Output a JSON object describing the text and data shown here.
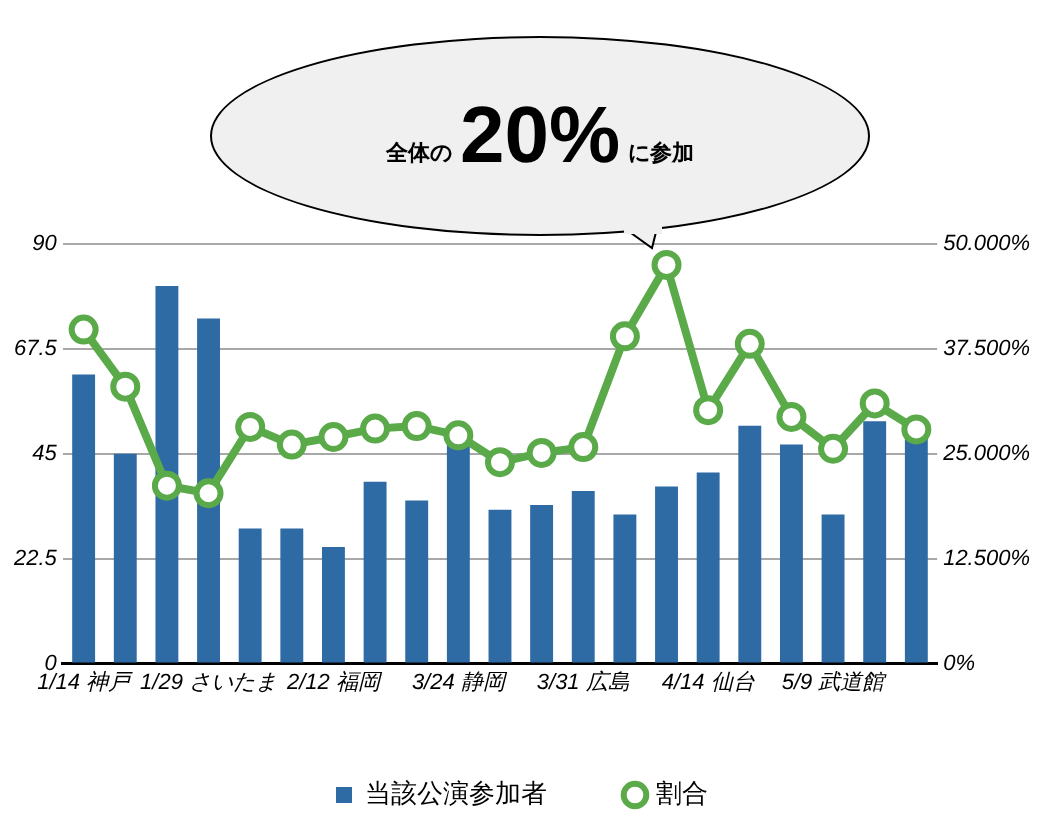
{
  "chart_data": {
    "type": "bar",
    "annotations": [
      "全体の",
      "20%",
      "に参加"
    ],
    "categories": [
      "1/14 神戸",
      null,
      null,
      "1/29 さいたま",
      null,
      null,
      "2/12 福岡",
      null,
      null,
      "3/24 静岡",
      null,
      null,
      "3/31 広島",
      null,
      null,
      "4/14 仙台",
      null,
      null,
      "5/9 武道館",
      null,
      null
    ],
    "series": [
      {
        "name": "当該公演参加者",
        "color": "#2e6aa3",
        "values": [
          62,
          45,
          81,
          74,
          29,
          29,
          25,
          39,
          35,
          47,
          33,
          34,
          37,
          32,
          38,
          41,
          51,
          47,
          32,
          52,
          49
        ]
      },
      {
        "name": "割合",
        "type": "line",
        "axis": "y2",
        "color": "#5aaa4a",
        "marker": "circle",
        "values": [
          39.8,
          33.0,
          21.2,
          20.3,
          28.2,
          26.1,
          27.0,
          28.0,
          28.3,
          27.2,
          24.0,
          25.1,
          25.8,
          39.0,
          47.5,
          30.2,
          38.1,
          29.4,
          25.6,
          31.0,
          27.9
        ]
      }
    ],
    "ylim": [
      0,
      90
    ],
    "yticks": [
      0,
      22.5,
      45,
      67.5,
      90
    ],
    "y2lim": [
      0,
      50
    ],
    "y2ticks": [
      {
        "value": 0,
        "label": "0%"
      },
      {
        "value": 12.5,
        "label": "12.500%"
      },
      {
        "value": 25,
        "label": "25.000%"
      },
      {
        "value": 37.5,
        "label": "37.500%"
      },
      {
        "value": 50,
        "label": "50.000%"
      }
    ],
    "grid": "y",
    "legend": "bottom"
  }
}
